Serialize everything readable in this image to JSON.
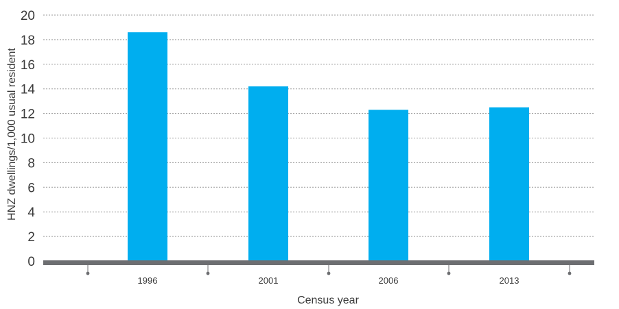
{
  "chart_data": {
    "type": "bar",
    "categories": [
      "1996",
      "2001",
      "2006",
      "2013"
    ],
    "values": [
      18.6,
      14.2,
      12.3,
      12.5
    ],
    "xlabel": "Census year",
    "ylabel": "HNZ dwellings/1,000 usual resident",
    "ylim": [
      0,
      20
    ],
    "yticks": [
      "0",
      "2",
      "4",
      "6",
      "8",
      "10",
      "12",
      "14",
      "16",
      "18",
      "20"
    ],
    "grid": true,
    "colors": {
      "bar": "#00aeef",
      "axis": "#6d6e71",
      "grid": "#9a9a9a",
      "text": "#3a3a3a"
    }
  }
}
